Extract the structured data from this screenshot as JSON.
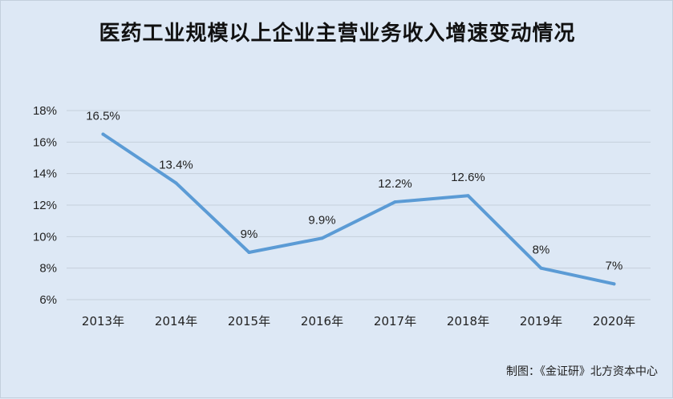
{
  "chart_data": {
    "type": "line",
    "title": "医药工业规模以上企业主营业务收入增速变动情况",
    "categories": [
      "2013年",
      "2014年",
      "2015年",
      "2016年",
      "2017年",
      "2018年",
      "2019年",
      "2020年"
    ],
    "series": [
      {
        "values": [
          16.5,
          13.4,
          9,
          9.9,
          12.2,
          12.6,
          8,
          7
        ],
        "labels": [
          "16.5%",
          "13.4%",
          "9%",
          "9.9%",
          "12.2%",
          "12.6%",
          "8%",
          "7%"
        ]
      }
    ],
    "ylim": [
      6,
      18
    ],
    "yticks": [
      6,
      8,
      10,
      12,
      14,
      16,
      18
    ],
    "ytick_labels": [
      "6%",
      "8%",
      "10%",
      "12%",
      "14%",
      "16%",
      "18%"
    ],
    "grid": true,
    "legend": "none",
    "line_color": "#5b9bd5",
    "grid_color": "#c5cfdb"
  },
  "source": "制图：《金证研》北方资本中心"
}
